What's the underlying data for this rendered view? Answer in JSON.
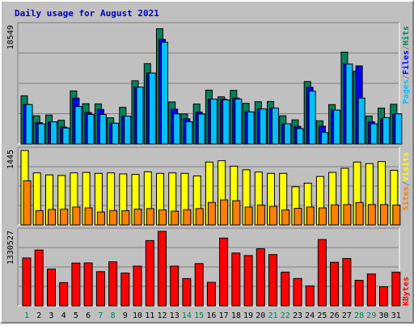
{
  "title": "Daily usage for August 2021",
  "colors": {
    "background": "#c0c0c0",
    "plot": "#c0c0c0",
    "title": "#0000c0",
    "hits": "#00805c",
    "files": "#0000ff",
    "pages": "#00c0ff",
    "visits": "#ffff00",
    "sites": "#ff8000",
    "kbytes": "#ff0000",
    "grid": "#808080",
    "day_normal": "#000000",
    "day_weekend": "#00805c"
  },
  "chart_data": [
    {
      "type": "bar",
      "name": "hits-files-pages",
      "title": "Daily usage for August 2021",
      "ymax_label": "18549",
      "ymax": 18549,
      "categories": [
        "1",
        "2",
        "3",
        "4",
        "5",
        "6",
        "7",
        "8",
        "9",
        "10",
        "11",
        "12",
        "13",
        "14",
        "15",
        "16",
        "17",
        "18",
        "19",
        "20",
        "21",
        "22",
        "23",
        "24",
        "25",
        "26",
        "27",
        "28",
        "29",
        "30",
        "31"
      ],
      "weekend": [
        true,
        false,
        false,
        false,
        false,
        false,
        true,
        true,
        false,
        false,
        false,
        false,
        false,
        true,
        true,
        false,
        false,
        false,
        false,
        false,
        true,
        true,
        false,
        false,
        false,
        false,
        false,
        true,
        true,
        false,
        false
      ],
      "legend": [
        "Pages",
        "/",
        "Files",
        "/",
        "Hits"
      ],
      "series": [
        {
          "name": "Hits",
          "values": [
            7570,
            4440,
            4550,
            3740,
            8330,
            6330,
            6300,
            4120,
            5760,
            9930,
            12610,
            18100,
            6610,
            4730,
            6270,
            8460,
            7410,
            8420,
            6390,
            6650,
            6680,
            4440,
            3780,
            9810,
            3650,
            6190,
            14430,
            11420,
            4400,
            5630,
            6240
          ]
        },
        {
          "name": "Files",
          "values": [
            6200,
            3350,
            3480,
            2660,
            7200,
            4940,
            5420,
            3260,
            4380,
            8930,
            11160,
            16430,
            5460,
            3960,
            5000,
            7050,
            7040,
            7220,
            5050,
            5500,
            5640,
            3180,
            2770,
            8900,
            2800,
            5320,
            12560,
            12270,
            3480,
            3930,
            4740
          ]
        },
        {
          "name": "Pages",
          "values": [
            6200,
            3180,
            3480,
            2510,
            5880,
            4640,
            4640,
            3260,
            4380,
            8930,
            11160,
            15980,
            4730,
            3500,
            4700,
            7050,
            6920,
            7050,
            5050,
            5500,
            5640,
            3180,
            2410,
            8300,
            1820,
            5320,
            12560,
            7220,
            3180,
            4140,
            4740
          ]
        }
      ]
    },
    {
      "type": "bar",
      "name": "visits-sites",
      "ymax_label": "1445",
      "ymax": 1445,
      "legend": [
        "Sites",
        "/",
        "Visits"
      ],
      "series": [
        {
          "name": "Visits",
          "values": [
            1445,
            1010,
            970,
            960,
            1010,
            1020,
            1000,
            1010,
            990,
            980,
            1030,
            1000,
            1010,
            1000,
            950,
            1220,
            1245,
            1140,
            1070,
            1025,
            1000,
            1000,
            740,
            810,
            940,
            1020,
            1100,
            1220,
            1190,
            1230,
            1060
          ]
        },
        {
          "name": "Sites",
          "values": [
            855,
            275,
            300,
            305,
            345,
            330,
            250,
            280,
            275,
            305,
            315,
            290,
            265,
            295,
            315,
            435,
            485,
            470,
            345,
            385,
            360,
            290,
            320,
            345,
            330,
            390,
            395,
            435,
            395,
            395,
            385
          ]
        }
      ]
    },
    {
      "type": "bar",
      "name": "kbytes",
      "ymax_label": "1330527",
      "ymax": 1330527,
      "legend": [
        "KBytes"
      ],
      "series": [
        {
          "name": "KBytes",
          "values": [
            855000,
            996000,
            657000,
            415000,
            764000,
            767000,
            611000,
            786000,
            586000,
            708000,
            1166000,
            1330527,
            708000,
            486000,
            755000,
            420000,
            1210000,
            943000,
            898000,
            1020000,
            915000,
            601000,
            487000,
            356000,
            1184000,
            778000,
            844000,
            455000,
            568000,
            339000,
            601000
          ]
        }
      ]
    }
  ]
}
